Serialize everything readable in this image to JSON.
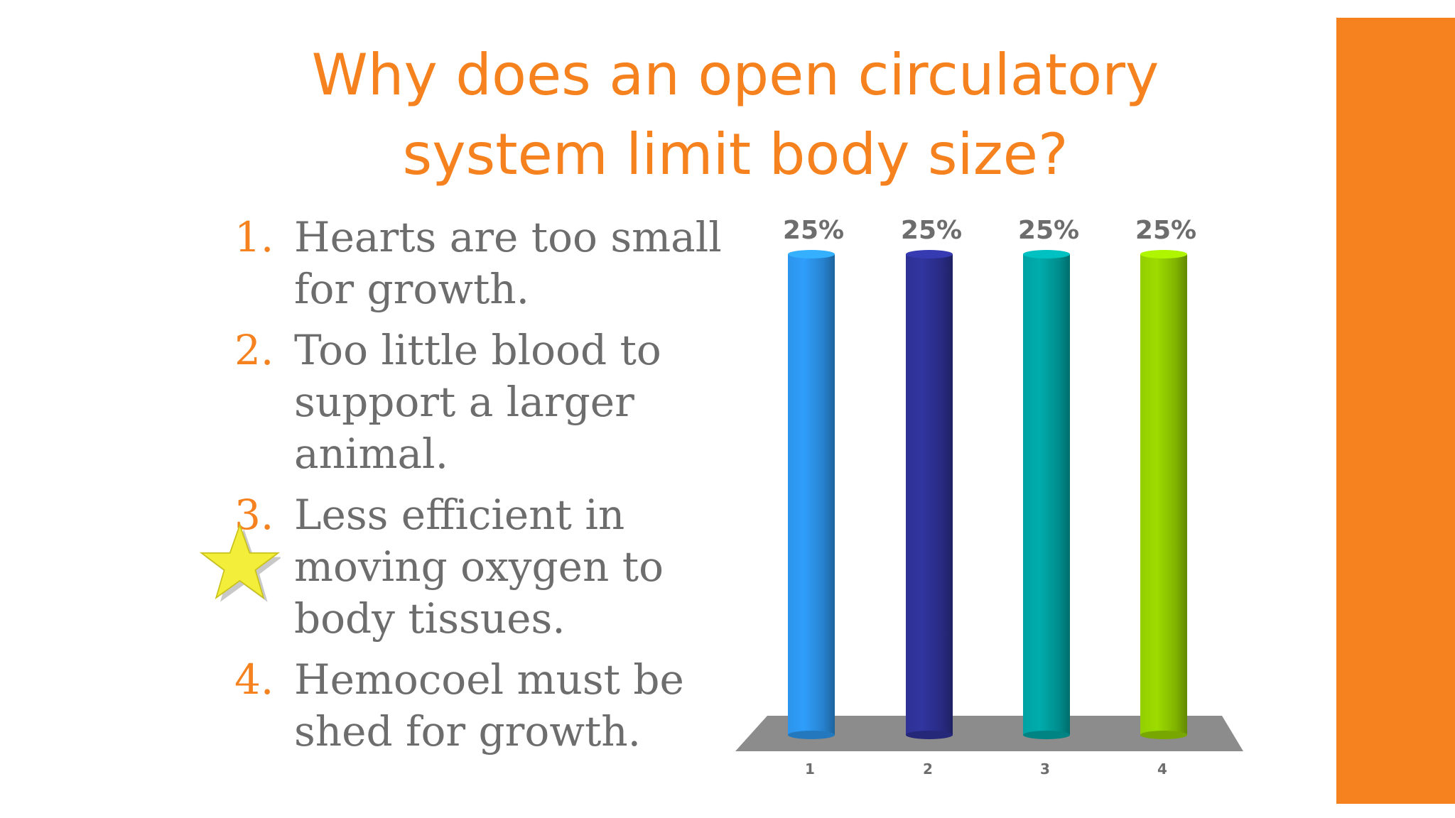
{
  "slide": {
    "title": "Why does an open circulatory system limit body size?",
    "accent_color": "#f5821f",
    "text_color": "#6d6d6d"
  },
  "answers": [
    {
      "number": "1.",
      "text": "Hearts are too small for growth."
    },
    {
      "number": "2.",
      "text": "Too little blood to support a larger animal."
    },
    {
      "number": "3.",
      "text": "Less efficient in moving oxygen to body tissues."
    },
    {
      "number": "4.",
      "text": "Hemocoel must be shed for growth."
    }
  ],
  "correct_marker": {
    "icon": "star-icon",
    "answer": 3,
    "color": "#f3ee3a"
  },
  "chart_data": {
    "type": "bar",
    "categories": [
      "1",
      "2",
      "3",
      "4"
    ],
    "values": [
      25,
      25,
      25,
      25
    ],
    "data_labels": [
      "25%",
      "25%",
      "25%",
      "25%"
    ],
    "colors": [
      "#2a8de0",
      "#2c2f8e",
      "#009a9a",
      "#8cc400"
    ],
    "ylim": [
      0,
      25
    ],
    "grid": false,
    "legend": "none"
  }
}
